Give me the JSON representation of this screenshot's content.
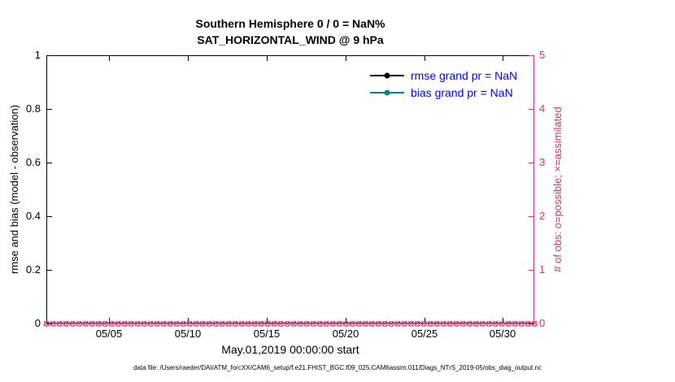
{
  "figure": {
    "title_line1": "Southern Hemisphere 0 / 0 = NaN%",
    "title_line2": "SAT_HORIZONTAL_WIND @ 9 hPa",
    "footer": "data file: /Users/raeder/DAI/ATM_forcXX/CAM6_setup/f.e21.FHIST_BGC.f09_025.CAM6assim.011/Diags_NTrS_2019-05/obs_diag_output.nc"
  },
  "colors": {
    "obs_axis": "#d6336c",
    "rmse": "#000000",
    "bias": "#008b8b",
    "legend_text": "#0000ff",
    "axis": "#000000",
    "background": "#ffffff"
  },
  "chart_data": {
    "type": "line",
    "title": "Southern Hemisphere 0 / 0 = NaN%",
    "subtitle": "SAT_HORIZONTAL_WIND @ 9 hPa",
    "xlabel": "May.01,2019 00:00:00 start",
    "grid": false,
    "x_axis": {
      "tick_labels": [
        "05/05",
        "05/10",
        "05/15",
        "05/20",
        "05/25",
        "05/30"
      ],
      "tick_days": [
        5,
        10,
        15,
        20,
        25,
        30
      ],
      "xlim_day_of_may": [
        1,
        32
      ]
    },
    "left_axis": {
      "label": "rmse and bias (model - observation)",
      "ticks": [
        "0",
        "0.2",
        "0.4",
        "0.6",
        "0.8",
        "1"
      ],
      "range": [
        0,
        1
      ]
    },
    "right_axis": {
      "label": "# of obs: o=possible; ×=assimilated",
      "ticks": [
        "0",
        "1",
        "2",
        "3",
        "4",
        "5"
      ],
      "range": [
        0,
        5
      ]
    },
    "series": [
      {
        "name": "rmse",
        "legend": "rmse grand pr = NaN",
        "color": "#000000",
        "marker": "filled-circle",
        "values": []
      },
      {
        "name": "bias",
        "legend": "bias grand pr = NaN",
        "color": "#008b8b",
        "marker": "filled-circle",
        "values": []
      },
      {
        "name": "obs-possible",
        "color": "#d6336c",
        "marker": "circle",
        "constant_value": 0,
        "marker_count": 76
      },
      {
        "name": "obs-assimilated",
        "color": "#d6336c",
        "marker": "x",
        "constant_value": 0,
        "marker_count": 76
      }
    ],
    "legend": {
      "position": "top-right-inside",
      "entries": [
        {
          "label": "rmse grand pr = NaN",
          "color": "#000000"
        },
        {
          "label": "bias grand pr = NaN",
          "color": "#008b8b"
        }
      ]
    }
  }
}
